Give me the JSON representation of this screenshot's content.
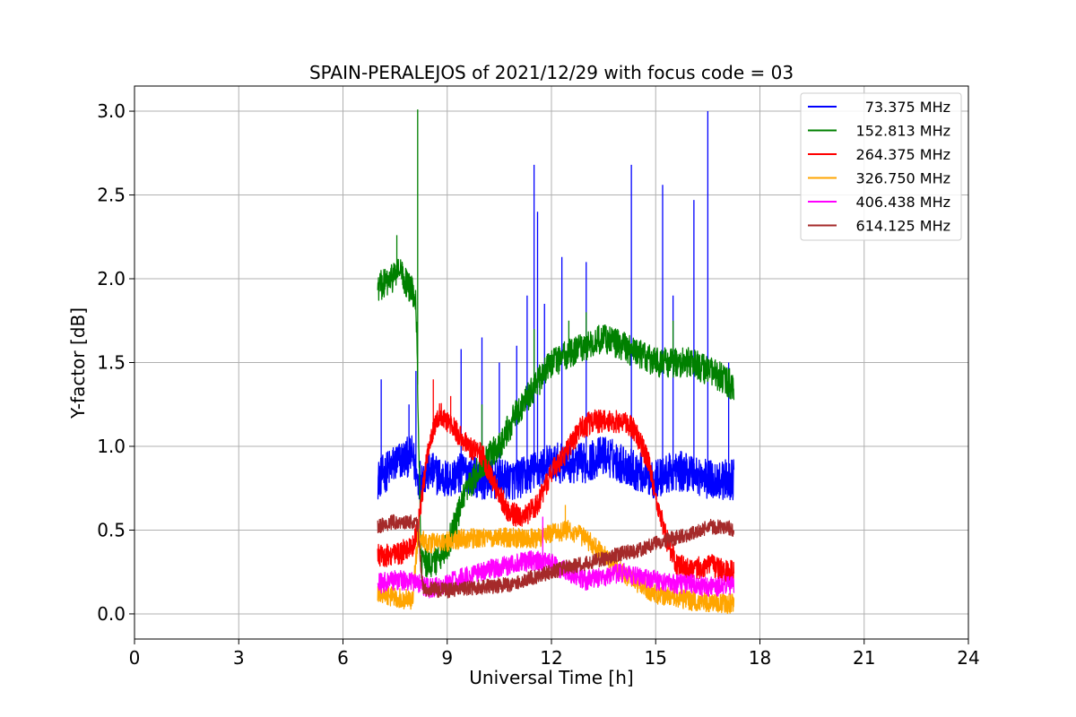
{
  "chart_data": {
    "type": "line",
    "title": "SPAIN-PERALEJOS of 2021/12/29 with focus code = 03",
    "xlabel": "Universal Time [h]",
    "ylabel": "Y-factor [dB]",
    "xlim": [
      0,
      24
    ],
    "ylim": [
      -0.15,
      3.15
    ],
    "xticks": [
      0,
      3,
      6,
      9,
      12,
      15,
      18,
      21,
      24
    ],
    "yticks": [
      0.0,
      0.5,
      1.0,
      1.5,
      2.0,
      2.5,
      3.0
    ],
    "xtick_labels": [
      "0",
      "3",
      "6",
      "9",
      "12",
      "15",
      "18",
      "21",
      "24"
    ],
    "ytick_labels": [
      "0.0",
      "0.5",
      "1.0",
      "1.5",
      "2.0",
      "2.5",
      "3.0"
    ],
    "grid": true,
    "legend_position": "top-right",
    "x_range_observed": [
      7.0,
      17.25
    ],
    "series": [
      {
        "name": "73.375 MHz",
        "color": "#0000ff",
        "noise": 0.12,
        "x": [
          7.0,
          7.5,
          8.0,
          8.15,
          8.5,
          9.0,
          9.5,
          10.0,
          10.5,
          11.0,
          11.5,
          12.0,
          12.5,
          13.0,
          13.5,
          14.0,
          14.5,
          15.0,
          15.5,
          16.0,
          16.5,
          17.0,
          17.25
        ],
        "y": [
          0.8,
          0.9,
          0.95,
          0.8,
          0.85,
          0.8,
          0.85,
          0.8,
          0.8,
          0.8,
          0.85,
          0.9,
          0.9,
          0.9,
          0.95,
          0.9,
          0.85,
          0.8,
          0.85,
          0.85,
          0.8,
          0.8,
          0.8
        ],
        "spikes": [
          [
            7.1,
            1.4
          ],
          [
            7.9,
            1.25
          ],
          [
            8.1,
            1.45
          ],
          [
            9.4,
            1.58
          ],
          [
            10.0,
            1.65
          ],
          [
            10.5,
            1.5
          ],
          [
            11.0,
            1.6
          ],
          [
            11.3,
            1.9
          ],
          [
            11.5,
            2.68
          ],
          [
            11.6,
            2.4
          ],
          [
            11.8,
            1.85
          ],
          [
            12.3,
            2.13
          ],
          [
            13.0,
            2.1
          ],
          [
            14.3,
            2.68
          ],
          [
            15.2,
            2.56
          ],
          [
            15.5,
            1.9
          ],
          [
            16.1,
            2.47
          ],
          [
            16.5,
            3.0
          ],
          [
            17.1,
            1.5
          ]
        ]
      },
      {
        "name": "152.813 MHz",
        "color": "#008000",
        "noise": 0.09,
        "x": [
          7.0,
          7.3,
          7.6,
          7.9,
          8.1,
          8.25,
          8.6,
          9.0,
          9.5,
          10.0,
          10.5,
          11.0,
          11.5,
          12.0,
          12.5,
          13.0,
          13.5,
          14.0,
          14.5,
          15.0,
          15.5,
          16.0,
          16.5,
          17.0,
          17.25
        ],
        "y": [
          1.95,
          1.98,
          2.05,
          1.95,
          1.9,
          0.3,
          0.3,
          0.4,
          0.7,
          0.9,
          1.0,
          1.2,
          1.35,
          1.5,
          1.55,
          1.6,
          1.65,
          1.6,
          1.55,
          1.5,
          1.5,
          1.5,
          1.45,
          1.4,
          1.35
        ],
        "spikes": [
          [
            7.55,
            2.26
          ],
          [
            8.15,
            3.01
          ],
          [
            10.0,
            1.25
          ],
          [
            11.5,
            1.7
          ],
          [
            12.5,
            1.75
          ],
          [
            13.0,
            1.8
          ],
          [
            15.5,
            1.75
          ]
        ]
      },
      {
        "name": "264.375 MHz",
        "color": "#ff0000",
        "noise": 0.07,
        "x": [
          7.0,
          7.5,
          8.0,
          8.15,
          8.5,
          8.8,
          9.2,
          9.6,
          10.0,
          10.4,
          10.8,
          11.2,
          11.6,
          12.0,
          12.4,
          12.8,
          13.2,
          13.6,
          14.0,
          14.4,
          14.8,
          15.0,
          15.3,
          15.6,
          16.0,
          16.5,
          17.0,
          17.25
        ],
        "y": [
          0.35,
          0.35,
          0.4,
          0.5,
          1.05,
          1.2,
          1.1,
          1.0,
          0.95,
          0.75,
          0.6,
          0.58,
          0.65,
          0.85,
          0.95,
          1.1,
          1.15,
          1.15,
          1.15,
          1.1,
          0.9,
          0.7,
          0.45,
          0.3,
          0.25,
          0.3,
          0.25,
          0.25
        ],
        "spikes": [
          [
            8.6,
            1.4
          ],
          [
            9.1,
            1.3
          ]
        ]
      },
      {
        "name": "326.750 MHz",
        "color": "#ffa500",
        "noise": 0.06,
        "x": [
          7.0,
          7.5,
          8.0,
          8.15,
          8.5,
          9.0,
          9.5,
          10.0,
          10.5,
          11.0,
          11.5,
          12.0,
          12.5,
          13.0,
          13.5,
          14.0,
          14.5,
          15.0,
          15.5,
          16.0,
          16.5,
          17.0,
          17.25
        ],
        "y": [
          0.12,
          0.1,
          0.08,
          0.45,
          0.42,
          0.43,
          0.45,
          0.45,
          0.46,
          0.45,
          0.45,
          0.48,
          0.5,
          0.45,
          0.35,
          0.25,
          0.18,
          0.12,
          0.1,
          0.08,
          0.07,
          0.06,
          0.06
        ],
        "spikes": [
          [
            12.4,
            0.65
          ]
        ]
      },
      {
        "name": "406.438 MHz",
        "color": "#ff00ff",
        "noise": 0.06,
        "x": [
          7.0,
          7.5,
          8.0,
          8.5,
          9.0,
          9.5,
          10.0,
          10.5,
          11.0,
          11.5,
          12.0,
          12.5,
          13.0,
          13.5,
          14.0,
          14.5,
          15.0,
          15.5,
          16.0,
          16.5,
          17.0,
          17.25
        ],
        "y": [
          0.18,
          0.2,
          0.2,
          0.15,
          0.18,
          0.22,
          0.25,
          0.28,
          0.3,
          0.32,
          0.3,
          0.25,
          0.2,
          0.22,
          0.25,
          0.22,
          0.2,
          0.18,
          0.18,
          0.16,
          0.17,
          0.17
        ],
        "spikes": [
          [
            11.75,
            0.58
          ]
        ]
      },
      {
        "name": "614.125 MHz",
        "color": "#a52a2a",
        "noise": 0.045,
        "x": [
          7.0,
          7.5,
          8.0,
          8.15,
          8.3,
          9.0,
          9.5,
          10.0,
          10.5,
          11.0,
          11.5,
          12.0,
          12.5,
          13.0,
          13.5,
          14.0,
          14.5,
          15.0,
          15.5,
          16.0,
          16.5,
          17.0,
          17.25
        ],
        "y": [
          0.52,
          0.55,
          0.55,
          0.53,
          0.15,
          0.14,
          0.15,
          0.16,
          0.17,
          0.18,
          0.22,
          0.25,
          0.28,
          0.3,
          0.33,
          0.36,
          0.38,
          0.42,
          0.45,
          0.48,
          0.52,
          0.52,
          0.5
        ],
        "spikes": []
      }
    ]
  }
}
